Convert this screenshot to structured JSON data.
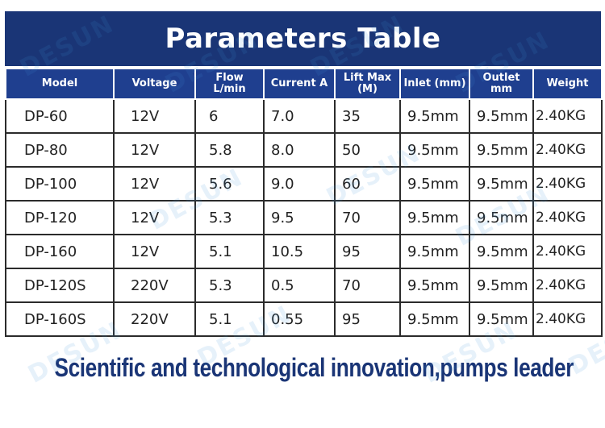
{
  "banner": {
    "title": "Parameters Table"
  },
  "table": {
    "headers": [
      "Model",
      "Voltage",
      "Flow L/min",
      "Current A",
      "Lift Max (M)",
      "Inlet (mm)",
      "Outlet mm",
      "Weight"
    ],
    "rows": [
      [
        "DP-60",
        "12V",
        "6",
        "7.0",
        "35",
        "9.5mm",
        "9.5mm",
        "2.40KG"
      ],
      [
        "DP-80",
        "12V",
        "5.8",
        "8.0",
        "50",
        "9.5mm",
        "9.5mm",
        "2.40KG"
      ],
      [
        "DP-100",
        "12V",
        "5.6",
        "9.0",
        "60",
        "9.5mm",
        "9.5mm",
        "2.40KG"
      ],
      [
        "DP-120",
        "12V",
        "5.3",
        "9.5",
        "70",
        "9.5mm",
        "9.5mm",
        "2.40KG"
      ],
      [
        "DP-160",
        "12V",
        "5.1",
        "10.5",
        "95",
        "9.5mm",
        "9.5mm",
        "2.40KG"
      ],
      [
        "DP-120S",
        "220V",
        "5.3",
        "0.5",
        "70",
        "9.5mm",
        "9.5mm",
        "2.40KG"
      ],
      [
        "DP-160S",
        "220V",
        "5.1",
        "0.55",
        "95",
        "9.5mm",
        "9.5mm",
        "2.40KG"
      ]
    ]
  },
  "slogan": "Scientific and technological innovation,pumps leader",
  "watermark": {
    "text": "DESUN",
    "color": "#3c96dc"
  },
  "colors": {
    "banner": "#1a3576",
    "header": "#1f3f8f",
    "slogan": "#1a3576"
  }
}
